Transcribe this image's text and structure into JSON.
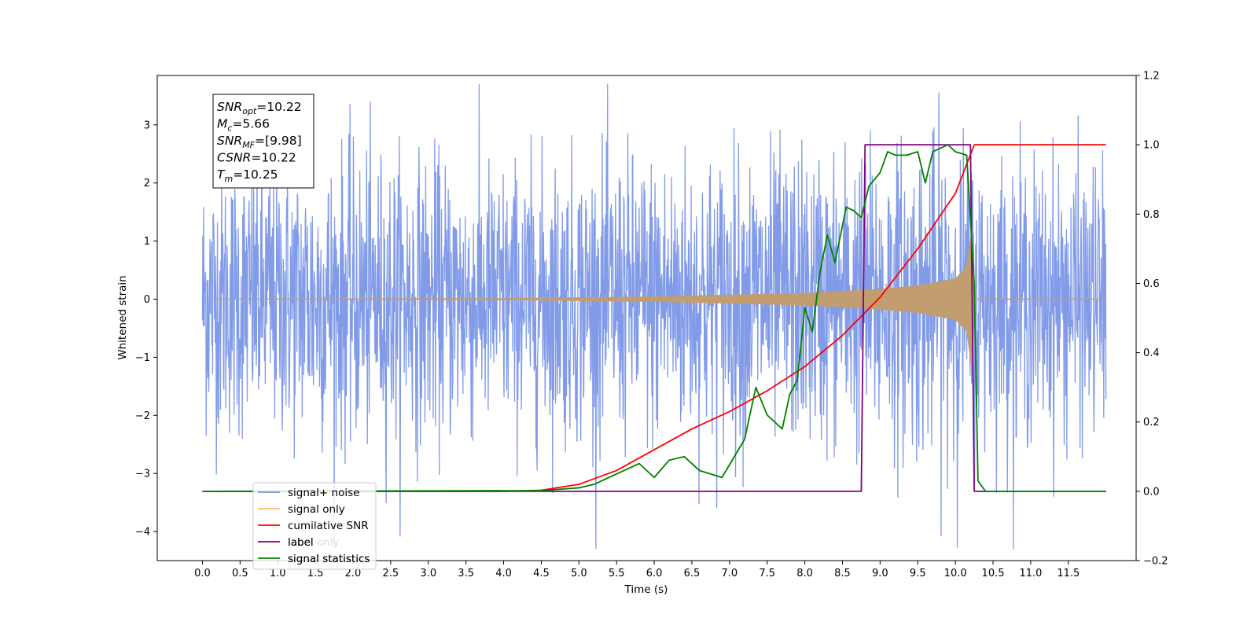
{
  "chart_data": {
    "type": "line",
    "title": "",
    "xlabel": "Time (s)",
    "ylabel": "Whitened strain",
    "y2label": "",
    "xlim": [
      -0.6,
      12.4
    ],
    "ylim": [
      -4.5,
      3.85
    ],
    "y2lim": [
      -0.2,
      1.2
    ],
    "grid": false,
    "legend_position": "bottom-left",
    "x_ticks": [
      "0.0",
      "0.5",
      "1.0",
      "1.5",
      "2.0",
      "2.5",
      "3.0",
      "3.5",
      "4.0",
      "4.5",
      "5.0",
      "5.5",
      "6.0",
      "6.5",
      "7.0",
      "7.5",
      "8.0",
      "8.5",
      "9.0",
      "9.5",
      "10.0",
      "10.5",
      "11.0",
      "11.5"
    ],
    "y_ticks": [
      "3",
      "2",
      "1",
      "0",
      "−1",
      "−2",
      "−3",
      "−4"
    ],
    "y2_ticks": [
      "1.2",
      "1.0",
      "0.8",
      "0.6",
      "0.4",
      "0.2",
      "0.0",
      "−0.2"
    ],
    "annotation": {
      "lines": [
        {
          "sym": "SNR",
          "sub": "opt",
          "value": "=10.22"
        },
        {
          "sym": "M",
          "sub": "c",
          "value": "=5.66"
        },
        {
          "sym": "SNR",
          "sub": "MF",
          "value": "=[9.98]"
        },
        {
          "sym": "CSNR",
          "sub": "",
          "value": "=10.22"
        },
        {
          "sym": "T",
          "sub": "m",
          "value": "=10.25"
        }
      ]
    },
    "series": [
      {
        "name": "signal+ noise",
        "color": "#7a96e8",
        "axis": "left",
        "kind": "noise",
        "x_range": [
          0.0,
          12.0
        ],
        "std": 0.95,
        "envelope": [
          [
            0.0,
            1.2
          ],
          [
            2.0,
            1.3
          ],
          [
            4.0,
            1.2
          ],
          [
            6.0,
            1.3
          ],
          [
            8.0,
            1.3
          ],
          [
            9.0,
            1.35
          ],
          [
            10.0,
            1.45
          ],
          [
            10.3,
            1.25
          ],
          [
            12.0,
            1.2
          ]
        ]
      },
      {
        "name": "signal only",
        "color": "#c19d70",
        "axis": "left",
        "kind": "chirp",
        "x_range": [
          0.0,
          10.25
        ],
        "amplitude": [
          [
            0.0,
            0.0
          ],
          [
            4.0,
            0.01
          ],
          [
            6.0,
            0.04
          ],
          [
            7.0,
            0.07
          ],
          [
            8.0,
            0.1
          ],
          [
            9.0,
            0.17
          ],
          [
            9.5,
            0.23
          ],
          [
            10.0,
            0.35
          ],
          [
            10.15,
            0.55
          ],
          [
            10.22,
            1.2
          ],
          [
            10.25,
            0.0
          ]
        ]
      },
      {
        "name": "cumilative SNR",
        "color": "#ff0000",
        "axis": "right",
        "x": [
          0.0,
          4.0,
          4.5,
          5.0,
          5.5,
          6.0,
          6.5,
          7.0,
          7.5,
          8.0,
          8.5,
          9.0,
          9.5,
          10.0,
          10.25,
          12.0
        ],
        "values": [
          0.0,
          0.0,
          0.003,
          0.02,
          0.06,
          0.12,
          0.18,
          0.23,
          0.29,
          0.36,
          0.45,
          0.56,
          0.7,
          0.86,
          1.0,
          1.0
        ]
      },
      {
        "name": "label",
        "color": "#800080",
        "axis": "right",
        "x": [
          0.0,
          8.75,
          8.8,
          10.2,
          10.25,
          12.0
        ],
        "values": [
          0.0,
          0.0,
          1.0,
          1.0,
          0.0,
          0.0
        ]
      },
      {
        "name": "signal statistics",
        "color": "#008000",
        "axis": "right",
        "x": [
          0.0,
          4.5,
          5.0,
          5.2,
          5.5,
          5.8,
          6.0,
          6.2,
          6.4,
          6.6,
          6.9,
          7.2,
          7.35,
          7.5,
          7.7,
          7.8,
          7.9,
          8.0,
          8.1,
          8.2,
          8.3,
          8.4,
          8.55,
          8.65,
          8.75,
          8.85,
          9.0,
          9.1,
          9.2,
          9.35,
          9.5,
          9.6,
          9.7,
          9.8,
          9.9,
          10.0,
          10.15,
          10.25,
          10.3,
          10.4,
          12.0
        ],
        "values": [
          0.0,
          0.002,
          0.01,
          0.02,
          0.05,
          0.08,
          0.04,
          0.09,
          0.1,
          0.06,
          0.04,
          0.15,
          0.3,
          0.22,
          0.18,
          0.28,
          0.32,
          0.53,
          0.46,
          0.63,
          0.74,
          0.66,
          0.82,
          0.81,
          0.79,
          0.88,
          0.92,
          0.98,
          0.97,
          0.97,
          0.98,
          0.89,
          0.98,
          0.99,
          1.0,
          0.98,
          0.97,
          0.6,
          0.03,
          0.0,
          0.0
        ]
      }
    ],
    "legend": [
      {
        "name": "signal+ noise",
        "color": "#7a96e8"
      },
      {
        "name": "signal only",
        "color": "#ffbe66"
      },
      {
        "name": "cumilative SNR",
        "color": "#ff0000"
      },
      {
        "name": "label",
        "color": "#800080"
      },
      {
        "name": "signal statistics",
        "color": "#008000"
      }
    ],
    "legend_ghost_text": [
      "label only",
      "signal statistics"
    ]
  }
}
